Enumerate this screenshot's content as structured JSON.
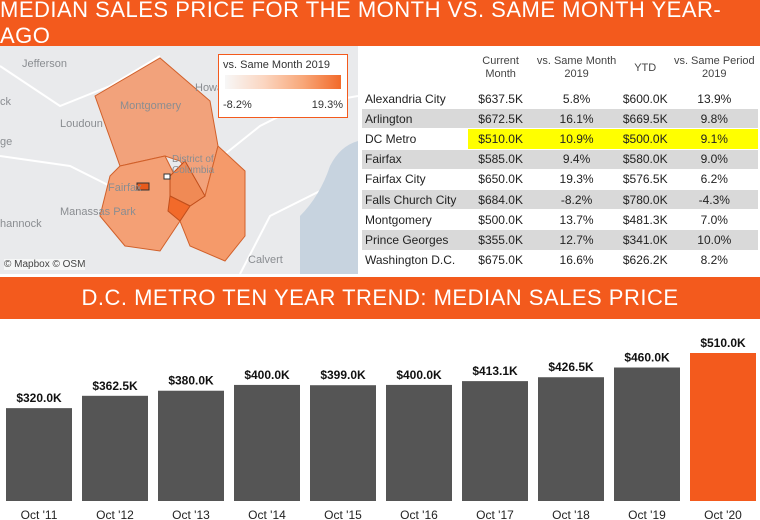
{
  "header": {
    "title": "MEDIAN SALES PRICE FOR THE MONTH VS. SAME MONTH YEAR-AGO"
  },
  "map": {
    "labels": {
      "jefferson": "Jefferson",
      "loudoun": "Loudoun",
      "montgomery": "Montgomery",
      "manassas": "Manassas Park",
      "hannock": "hannock",
      "calvert": "Calvert",
      "howa": "Howa",
      "ck": "ck",
      "ge": "ge",
      "fairfax": "Fairfax",
      "dc": "District of Columbia"
    },
    "legend": {
      "title": "vs. Same Month 2019",
      "min": "-8.2%",
      "max": "19.3%"
    },
    "attribution": "© Mapbox © OSM"
  },
  "table": {
    "columns": [
      "Current Month",
      "vs. Same Month 2019",
      "YTD",
      "vs. Same Period 2019"
    ],
    "rows": [
      {
        "name": "Alexandria City",
        "current": "$637.5K",
        "vs_month": "5.8%",
        "ytd": "$600.0K",
        "vs_period": "13.9%"
      },
      {
        "name": "Arlington",
        "current": "$672.5K",
        "vs_month": "16.1%",
        "ytd": "$669.5K",
        "vs_period": "9.8%"
      },
      {
        "name": "DC Metro",
        "current": "$510.0K",
        "vs_month": "10.9%",
        "ytd": "$500.0K",
        "vs_period": "9.1%"
      },
      {
        "name": "Fairfax",
        "current": "$585.0K",
        "vs_month": "9.4%",
        "ytd": "$580.0K",
        "vs_period": "9.0%"
      },
      {
        "name": "Fairfax City",
        "current": "$650.0K",
        "vs_month": "19.3%",
        "ytd": "$576.5K",
        "vs_period": "6.2%"
      },
      {
        "name": "Falls Church City",
        "current": "$684.0K",
        "vs_month": "-8.2%",
        "ytd": "$780.0K",
        "vs_period": "-4.3%"
      },
      {
        "name": "Montgomery",
        "current": "$500.0K",
        "vs_month": "13.7%",
        "ytd": "$481.3K",
        "vs_period": "7.0%"
      },
      {
        "name": "Prince Georges",
        "current": "$355.0K",
        "vs_month": "12.7%",
        "ytd": "$341.0K",
        "vs_period": "10.0%"
      },
      {
        "name": "Washington D.C.",
        "current": "$675.0K",
        "vs_month": "16.6%",
        "ytd": "$626.2K",
        "vs_period": "8.2%"
      }
    ]
  },
  "trend": {
    "title": "D.C. METRO TEN YEAR TREND: MEDIAN SALES PRICE"
  },
  "colors": {
    "accent": "#f35a1d",
    "bar": "#555555",
    "highlight": "#ffff00"
  },
  "chart_data": {
    "type": "bar",
    "categories": [
      "Oct '11",
      "Oct '12",
      "Oct '13",
      "Oct '14",
      "Oct '15",
      "Oct '16",
      "Oct '17",
      "Oct '18",
      "Oct '19",
      "Oct '20"
    ],
    "values": [
      320.0,
      362.5,
      380.0,
      400.0,
      399.0,
      400.0,
      413.1,
      426.5,
      460.0,
      510.0
    ],
    "value_labels": [
      "$320.0K",
      "$362.5K",
      "$380.0K",
      "$400.0K",
      "$399.0K",
      "$400.0K",
      "$413.1K",
      "$426.5K",
      "$460.0K",
      "$510.0K"
    ],
    "highlight_index": 9,
    "title": "D.C. METRO TEN YEAR TREND: MEDIAN SALES PRICE",
    "ylim": [
      0,
      510
    ]
  }
}
